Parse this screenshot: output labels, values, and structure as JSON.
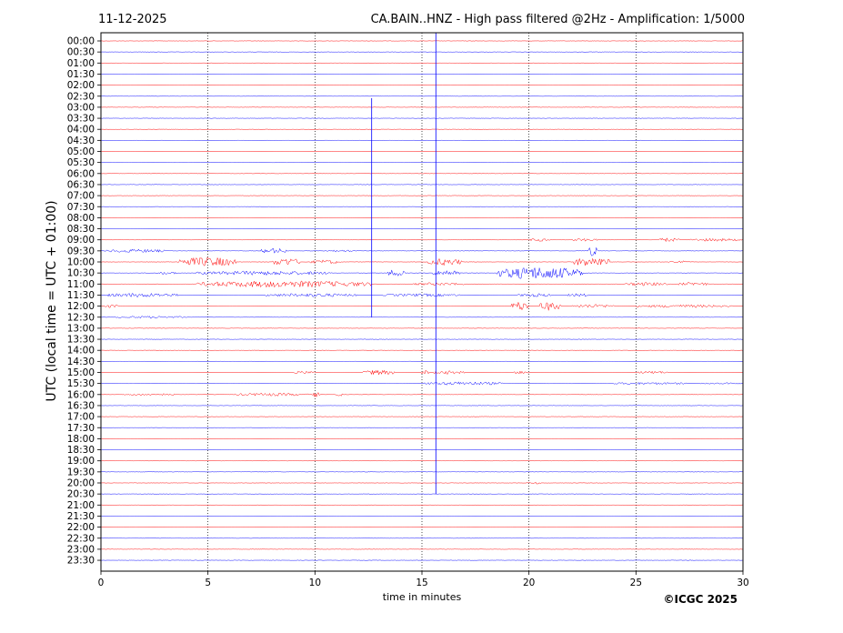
{
  "chart_data": {
    "type": "line",
    "date": "11-12-2025",
    "title": "CA.BAIN..HNZ - High pass filtered @2Hz - Amplification: 1/5000",
    "xlabel": "time in minutes",
    "ylabel": "UTC (local time = UTC + 01:00)",
    "xlim": [
      0,
      30
    ],
    "x_ticks": [
      "0",
      "5",
      "10",
      "15",
      "20",
      "25",
      "30"
    ],
    "x_gridlines": [
      5,
      10,
      15,
      20,
      25
    ],
    "rows": [
      "00:00",
      "00:30",
      "01:00",
      "01:30",
      "02:00",
      "02:30",
      "03:00",
      "03:30",
      "04:00",
      "04:30",
      "05:00",
      "05:30",
      "06:00",
      "06:30",
      "07:00",
      "07:30",
      "08:00",
      "08:30",
      "09:00",
      "09:30",
      "10:00",
      "10:30",
      "11:00",
      "11:30",
      "12:00",
      "12:30",
      "13:00",
      "13:30",
      "14:00",
      "14:30",
      "15:00",
      "15:30",
      "16:00",
      "16:30",
      "17:00",
      "17:30",
      "18:00",
      "18:30",
      "19:00",
      "19:30",
      "20:00",
      "20:30",
      "21:00",
      "21:30",
      "22:00",
      "22:30",
      "23:00",
      "23:30"
    ],
    "series_colors": [
      "#ff0000",
      "#0000ff"
    ],
    "activity": [
      {
        "row": "09:00",
        "segments": [
          [
            20,
            21,
            0.5
          ],
          [
            22,
            23.2,
            0.5
          ],
          [
            26,
            27,
            0.7
          ],
          [
            27.5,
            30,
            0.5
          ]
        ]
      },
      {
        "row": "09:30",
        "segments": [
          [
            0.2,
            3,
            0.6
          ],
          [
            7.5,
            8.7,
            0.9
          ],
          [
            10.5,
            12,
            0.4
          ],
          [
            22.8,
            23.2,
            1.8
          ]
        ]
      },
      {
        "row": "10:00",
        "segments": [
          [
            3.6,
            6.3,
            1.6
          ],
          [
            8,
            9.3,
            1.3
          ],
          [
            9.8,
            11.2,
            0.7
          ],
          [
            15.3,
            16.9,
            1.2
          ],
          [
            22.1,
            23.8,
            1.6
          ],
          [
            26.5,
            27.5,
            0.5
          ]
        ]
      },
      {
        "row": "10:30",
        "segments": [
          [
            2.6,
            3.6,
            0.5
          ],
          [
            4.4,
            10.8,
            0.7
          ],
          [
            13.4,
            14.2,
            1.2
          ],
          [
            15.5,
            16.8,
            1.1
          ],
          [
            18.5,
            22.5,
            2.1
          ]
        ]
      },
      {
        "row": "11:00",
        "segments": [
          [
            4.5,
            12.6,
            1.1
          ],
          [
            14.6,
            17,
            0.5
          ],
          [
            24.5,
            26.5,
            0.6
          ],
          [
            27,
            28.5,
            0.6
          ]
        ]
      },
      {
        "row": "11:30",
        "segments": [
          [
            0.2,
            3.6,
            0.7
          ],
          [
            7.7,
            12,
            0.6
          ],
          [
            13.2,
            16.8,
            0.5
          ],
          [
            19.5,
            21,
            0.6
          ],
          [
            21.8,
            22.8,
            0.6
          ]
        ]
      },
      {
        "row": "12:00",
        "segments": [
          [
            0.2,
            0.8,
            0.6
          ],
          [
            19.2,
            20,
            1.6
          ],
          [
            20.5,
            21.5,
            1.5
          ],
          [
            22,
            24,
            0.6
          ],
          [
            25,
            29.5,
            0.5
          ]
        ]
      },
      {
        "row": "12:30",
        "segments": [
          [
            0.7,
            4,
            0.4
          ]
        ]
      },
      {
        "row": "15:00",
        "segments": [
          [
            9,
            10,
            0.5
          ],
          [
            12.2,
            13.8,
            0.8
          ],
          [
            15,
            15.3,
            0.9
          ],
          [
            15.5,
            17,
            0.6
          ],
          [
            19.3,
            20,
            0.5
          ],
          [
            25,
            26.5,
            0.5
          ]
        ]
      },
      {
        "row": "15:30",
        "segments": [
          [
            15.1,
            18.8,
            0.6
          ],
          [
            23.8,
            27.5,
            0.4
          ],
          [
            28,
            30,
            0.3
          ]
        ]
      },
      {
        "row": "16:00",
        "segments": [
          [
            1.1,
            3.5,
            0.4
          ],
          [
            6.2,
            9.7,
            0.5
          ],
          [
            9.9,
            10.2,
            0.9
          ],
          [
            11,
            11.3,
            0.6
          ]
        ]
      },
      {
        "row": "20:00",
        "segments": [
          [
            19.9,
            20.6,
            0.4
          ]
        ]
      }
    ],
    "spikes": [
      {
        "x": 12.65,
        "from_row": "03:00",
        "to_row": "12:30",
        "color": "#0000ff"
      },
      {
        "x": 15.65,
        "from_row": "00:00",
        "to_row": "20:30",
        "color": "#0000ff"
      }
    ]
  },
  "copyright": "©ICGC 2025"
}
